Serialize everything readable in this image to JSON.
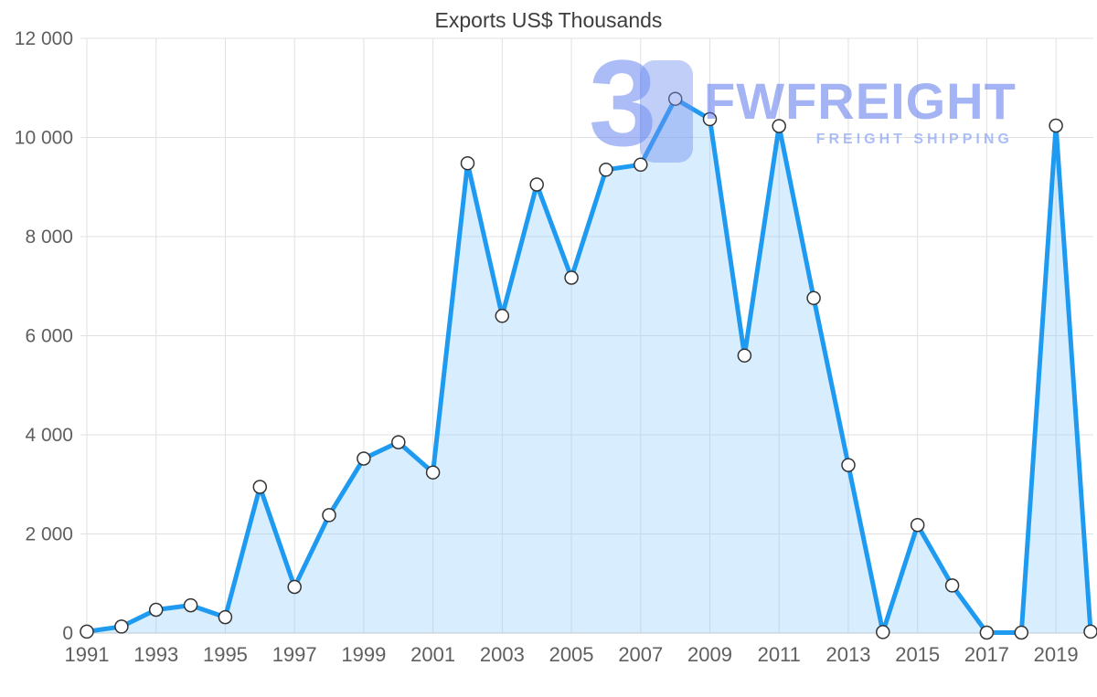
{
  "title": "Exports US$ Thousands",
  "watermark": {
    "logo_glyph": "3",
    "brand": "FWFREIGHT",
    "tagline": "FREIGHT SHIPPING"
  },
  "chart_data": {
    "type": "area",
    "title": "Exports US$ Thousands",
    "xlabel": "",
    "ylabel": "",
    "grid": true,
    "legend": false,
    "ylim": [
      0,
      12000
    ],
    "x": [
      1991,
      1992,
      1993,
      1994,
      1995,
      1996,
      1997,
      1998,
      1999,
      2000,
      2001,
      2002,
      2003,
      2004,
      2005,
      2006,
      2007,
      2008,
      2009,
      2010,
      2011,
      2012,
      2013,
      2014,
      2015,
      2016,
      2017,
      2018,
      2019,
      2020
    ],
    "values": [
      30,
      130,
      470,
      560,
      320,
      2950,
      930,
      2380,
      3520,
      3850,
      3240,
      9480,
      6400,
      9050,
      7170,
      9350,
      9450,
      10780,
      10370,
      5600,
      10230,
      6760,
      3390,
      20,
      2180,
      960,
      10,
      10,
      10240,
      30
    ],
    "y_ticks": [
      0,
      2000,
      4000,
      6000,
      8000,
      10000,
      12000
    ],
    "y_tick_labels": [
      "0",
      "2 000",
      "4 000",
      "6 000",
      "8 000",
      "10 000",
      "12 000"
    ],
    "x_tick_years": [
      1991,
      1993,
      1995,
      1997,
      1999,
      2001,
      2003,
      2005,
      2007,
      2009,
      2011,
      2013,
      2015,
      2017,
      2019
    ],
    "colors": {
      "line": "#1e9bf0",
      "area": "rgba(144, 202, 249, 0.35)",
      "marker_fill": "#ffffff",
      "marker_stroke": "#333333",
      "grid": "#e1e1e1",
      "axis": "#c9c9c9",
      "tick_text": "#5f5f5f",
      "title_text": "#3d3d3d"
    }
  }
}
